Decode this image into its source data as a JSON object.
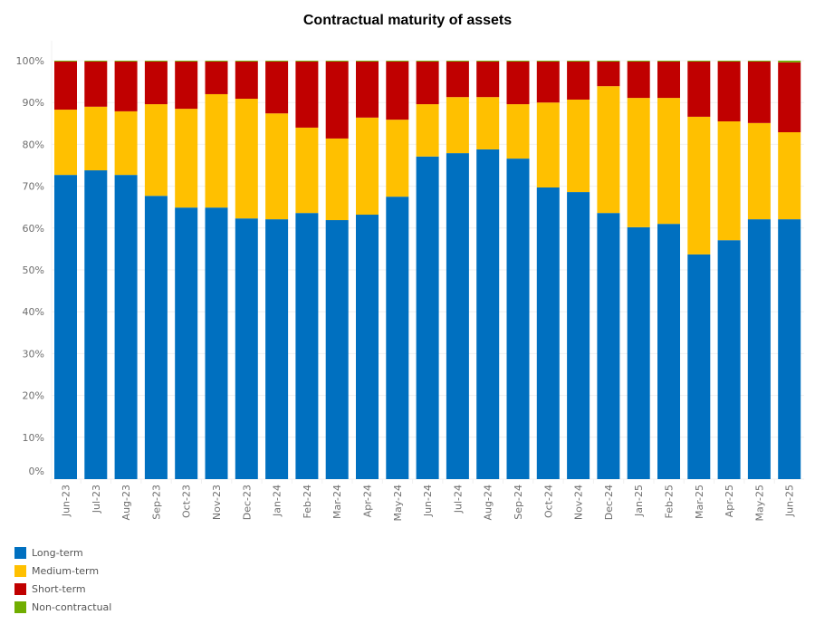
{
  "chart_data": {
    "type": "bar",
    "stacked": true,
    "title": "Contractual maturity of assets",
    "xlabel": "",
    "ylabel": "",
    "ylim": [
      0,
      100
    ],
    "yticks": [
      "0%",
      "10%",
      "20%",
      "30%",
      "40%",
      "50%",
      "60%",
      "70%",
      "80%",
      "90%",
      "100%"
    ],
    "grid": true,
    "legend_position": "bottom-left",
    "categories": [
      "Jun-23",
      "Jul-23",
      "Aug-23",
      "Sep-23",
      "Oct-23",
      "Nov-23",
      "Dec-23",
      "Jan-24",
      "Feb-24",
      "Mar-24",
      "Apr-24",
      "May-24",
      "Jun-24",
      "Jul-24",
      "Aug-24",
      "Sep-24",
      "Oct-24",
      "Nov-24",
      "Dec-24",
      "Jan-25",
      "Feb-25",
      "Mar-25",
      "Apr-25",
      "May-25",
      "Jun-25"
    ],
    "series": [
      {
        "name": "Long-term",
        "color": "#0070c0",
        "values": [
          72.7,
          73.8,
          72.7,
          67.7,
          64.9,
          64.9,
          62.3,
          62.1,
          63.6,
          61.9,
          63.2,
          67.5,
          77.1,
          77.9,
          78.8,
          76.6,
          69.7,
          68.6,
          63.6,
          60.2,
          61.0,
          53.7,
          57.1,
          62.1,
          62.1
        ]
      },
      {
        "name": "Medium-term",
        "color": "#ffc000",
        "values": [
          15.6,
          15.2,
          15.2,
          21.9,
          23.6,
          27.1,
          28.6,
          25.3,
          20.4,
          19.5,
          23.2,
          18.4,
          12.5,
          13.4,
          12.5,
          13.0,
          20.3,
          22.1,
          30.3,
          30.9,
          30.1,
          32.9,
          28.4,
          23.0,
          20.8
        ]
      },
      {
        "name": "Short-term",
        "color": "#c00000",
        "values": [
          11.5,
          10.8,
          11.9,
          10.2,
          11.3,
          7.8,
          8.9,
          12.4,
          15.8,
          18.4,
          13.4,
          13.9,
          10.2,
          8.5,
          8.5,
          10.2,
          9.8,
          9.1,
          5.9,
          8.7,
          8.7,
          13.2,
          14.3,
          14.7,
          16.7
        ]
      },
      {
        "name": "Non-contractual",
        "color": "#70ad00",
        "values": [
          0.2,
          0.2,
          0.2,
          0.2,
          0.2,
          0.2,
          0.2,
          0.2,
          0.2,
          0.2,
          0.2,
          0.2,
          0.2,
          0.2,
          0.2,
          0.2,
          0.2,
          0.2,
          0.2,
          0.2,
          0.2,
          0.2,
          0.2,
          0.2,
          0.4
        ]
      }
    ]
  }
}
